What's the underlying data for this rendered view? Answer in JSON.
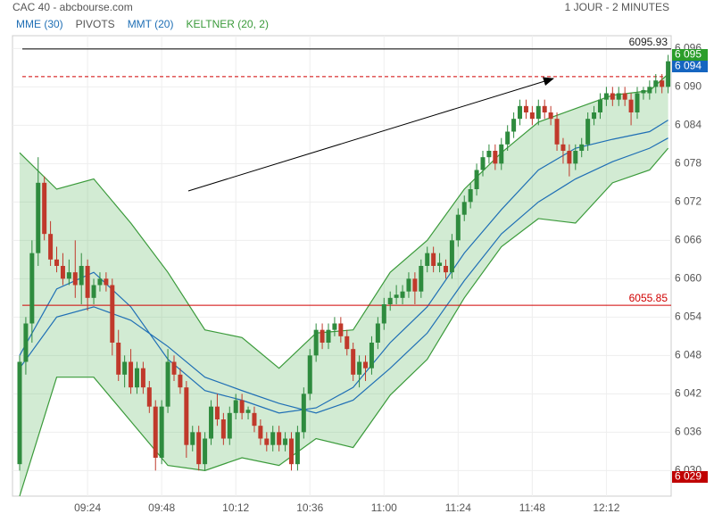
{
  "chart_data": {
    "type": "candlestick",
    "title": "CAC 40 - abcbourse.com",
    "subtitle": "1 JOUR - 2 MINUTES",
    "legend": [
      {
        "name": "MME (30)",
        "color": "#1f6fb5"
      },
      {
        "name": "PIVOTS",
        "color": "#555555"
      },
      {
        "name": "MMT (20)",
        "color": "#1f6fb5"
      },
      {
        "name": "KELTNER (20, 2)",
        "color": "#3a9a3a"
      }
    ],
    "up_color": "#2e8b3e",
    "down_color": "#c0392b",
    "x": [
      "09:02",
      "09:04",
      "09:06",
      "09:08",
      "09:10",
      "09:12",
      "09:14",
      "09:16",
      "09:18",
      "09:20",
      "09:22",
      "09:24",
      "09:26",
      "09:28",
      "09:30",
      "09:32",
      "09:34",
      "09:36",
      "09:38",
      "09:40",
      "09:42",
      "09:44",
      "09:46",
      "09:48",
      "09:50",
      "09:52",
      "09:54",
      "09:56",
      "09:58",
      "10:00",
      "10:02",
      "10:04",
      "10:06",
      "10:08",
      "10:10",
      "10:12",
      "10:14",
      "10:16",
      "10:18",
      "10:20",
      "10:22",
      "10:24",
      "10:26",
      "10:28",
      "10:30",
      "10:32",
      "10:34",
      "10:36",
      "10:38",
      "10:40",
      "10:42",
      "10:44",
      "10:46",
      "10:48",
      "10:50",
      "10:52",
      "10:54",
      "10:56",
      "10:58",
      "11:00",
      "11:02",
      "11:04",
      "11:06",
      "11:08",
      "11:10",
      "11:12",
      "11:14",
      "11:16",
      "11:18",
      "11:20",
      "11:22",
      "11:24",
      "11:26",
      "11:28",
      "11:30",
      "11:32",
      "11:34",
      "11:36",
      "11:38",
      "11:40",
      "11:42",
      "11:44",
      "11:46",
      "11:48",
      "11:50",
      "11:52",
      "11:54",
      "11:56",
      "11:58",
      "12:00",
      "12:02",
      "12:04",
      "12:06",
      "12:08",
      "12:10",
      "12:12",
      "12:14",
      "12:16",
      "12:18",
      "12:20",
      "12:22",
      "12:24",
      "12:26",
      "12:28",
      "12:30",
      "12:32"
    ],
    "candles": [
      [
        6031,
        6048,
        6030,
        6047
      ],
      [
        6047,
        6054,
        6045,
        6053
      ],
      [
        6053,
        6066,
        6050,
        6064
      ],
      [
        6064,
        6079,
        6062,
        6075
      ],
      [
        6075,
        6076,
        6066,
        6067
      ],
      [
        6067,
        6069,
        6062,
        6063
      ],
      [
        6063,
        6065,
        6061,
        6062
      ],
      [
        6062,
        6064,
        6059,
        6060
      ],
      [
        6060,
        6063,
        6059,
        6061
      ],
      [
        6061,
        6066,
        6057,
        6059
      ],
      [
        6059,
        6064,
        6056,
        6062
      ],
      [
        6062,
        6063,
        6055,
        6057
      ],
      [
        6057,
        6060,
        6056,
        6059
      ],
      [
        6059,
        6061,
        6058,
        6060
      ],
      [
        6060,
        6061,
        6058,
        6059
      ],
      [
        6059,
        6060,
        6048,
        6050
      ],
      [
        6050,
        6052,
        6044,
        6045
      ],
      [
        6045,
        6048,
        6043,
        6047
      ],
      [
        6047,
        6049,
        6042,
        6043
      ],
      [
        6043,
        6047,
        6042,
        6046
      ],
      [
        6046,
        6047,
        6042,
        6043
      ],
      [
        6043,
        6044,
        6039,
        6040
      ],
      [
        6040,
        6041,
        6030,
        6032
      ],
      [
        6032,
        6041,
        6031,
        6040
      ],
      [
        6040,
        6049,
        6039,
        6047
      ],
      [
        6047,
        6048,
        6044,
        6045
      ],
      [
        6045,
        6046,
        6042,
        6043
      ],
      [
        6043,
        6044,
        6032,
        6034
      ],
      [
        6034,
        6037,
        6033,
        6036
      ],
      [
        6036,
        6037,
        6030,
        6031
      ],
      [
        6031,
        6036,
        6030,
        6035
      ],
      [
        6035,
        6041,
        6034,
        6040
      ],
      [
        6040,
        6042,
        6037,
        6038
      ],
      [
        6038,
        6039,
        6034,
        6035
      ],
      [
        6035,
        6040,
        6034,
        6039
      ],
      [
        6039,
        6042,
        6038,
        6041
      ],
      [
        6041,
        6042,
        6038,
        6039
      ],
      [
        6039,
        6040,
        6038,
        6039.5
      ],
      [
        6039,
        6040,
        6036,
        6037
      ],
      [
        6037,
        6038,
        6034,
        6035
      ],
      [
        6035,
        6036,
        6033,
        6034
      ],
      [
        6034,
        6037,
        6033,
        6036
      ],
      [
        6036,
        6037,
        6033,
        6034
      ],
      [
        6034,
        6036,
        6033,
        6035
      ],
      [
        6035,
        6036,
        6030,
        6031
      ],
      [
        6031,
        6037,
        6030,
        6036
      ],
      [
        6036,
        6043,
        6035,
        6042
      ],
      [
        6042,
        6049,
        6041,
        6048
      ],
      [
        6048,
        6053,
        6047,
        6052
      ],
      [
        6052,
        6053,
        6049,
        6050
      ],
      [
        6050,
        6053,
        6049,
        6052
      ],
      [
        6052,
        6054,
        6051,
        6053
      ],
      [
        6053,
        6054,
        6050,
        6051
      ],
      [
        6051,
        6052,
        6048,
        6049
      ],
      [
        6049,
        6050,
        6044,
        6045
      ],
      [
        6045,
        6048,
        6043,
        6047
      ],
      [
        6047,
        6048,
        6044,
        6046
      ],
      [
        6046,
        6051,
        6045,
        6050
      ],
      [
        6050,
        6054,
        6049,
        6053
      ],
      [
        6053,
        6057,
        6052,
        6056
      ],
      [
        6056,
        6058,
        6055,
        6057
      ],
      [
        6057,
        6059,
        6056,
        6057.5
      ],
      [
        6057,
        6059,
        6056,
        6058
      ],
      [
        6058,
        6061,
        6057,
        6060
      ],
      [
        6060,
        6061,
        6056,
        6058
      ],
      [
        6058,
        6063,
        6057,
        6062
      ],
      [
        6062,
        6065,
        6061,
        6064
      ],
      [
        6064,
        6065,
        6061,
        6062
      ],
      [
        6062,
        6064,
        6061,
        6062.5
      ],
      [
        6062,
        6063,
        6060,
        6061
      ],
      [
        6061,
        6067,
        6060,
        6066
      ],
      [
        6066,
        6071,
        6065,
        6070
      ],
      [
        6070,
        6073,
        6069,
        6072
      ],
      [
        6072,
        6075,
        6071,
        6074
      ],
      [
        6074,
        6078,
        6073,
        6077
      ],
      [
        6077,
        6080,
        6076,
        6079
      ],
      [
        6079,
        6081,
        6078,
        6080
      ],
      [
        6080,
        6081,
        6077,
        6078
      ],
      [
        6078,
        6082,
        6077,
        6081
      ],
      [
        6081,
        6084,
        6080,
        6083
      ],
      [
        6083,
        6086,
        6082,
        6085
      ],
      [
        6085,
        6088,
        6084,
        6087
      ],
      [
        6087,
        6088,
        6085,
        6086
      ],
      [
        6086,
        6087,
        6084,
        6085
      ],
      [
        6085,
        6088,
        6084,
        6087
      ],
      [
        6087,
        6088,
        6085,
        6086
      ],
      [
        6086,
        6087,
        6084,
        6085
      ],
      [
        6085,
        6086,
        6080,
        6081
      ],
      [
        6081,
        6082,
        6078,
        6080
      ],
      [
        6080,
        6081,
        6076,
        6078
      ],
      [
        6078,
        6081,
        6077,
        6080
      ],
      [
        6080,
        6082,
        6079,
        6081
      ],
      [
        6081,
        6086,
        6080,
        6085
      ],
      [
        6085,
        6087,
        6084,
        6086
      ],
      [
        6086,
        6089,
        6085,
        6088
      ],
      [
        6088,
        6090,
        6087,
        6089
      ],
      [
        6089,
        6090,
        6087,
        6088
      ],
      [
        6088,
        6090,
        6087,
        6089
      ],
      [
        6089,
        6090,
        6087,
        6088
      ],
      [
        6088,
        6089,
        6084,
        6086
      ],
      [
        6086,
        6090,
        6085,
        6089
      ],
      [
        6089,
        6090,
        6088,
        6089.5
      ],
      [
        6089,
        6091,
        6088,
        6090
      ],
      [
        6090,
        6092,
        6089,
        6091
      ],
      [
        6091,
        6092,
        6089,
        6090
      ],
      [
        6090,
        6095,
        6089,
        6094
      ]
    ],
    "overlay_x": [
      "09:02",
      "09:14",
      "09:26",
      "09:38",
      "09:50",
      "10:02",
      "10:14",
      "10:26",
      "10:38",
      "10:50",
      "11:02",
      "11:14",
      "11:26",
      "11:38",
      "11:50",
      "12:02",
      "12:14",
      "12:26",
      "12:32"
    ],
    "keltner_upper": [
      6079.7,
      6074,
      6075.6,
      6068.7,
      6061,
      6052,
      6050.8,
      6046,
      6051.5,
      6052,
      6061,
      6066,
      6074,
      6079.7,
      6084.5,
      6086.6,
      6088.7,
      6089.4,
      6092
    ],
    "keltner_lower": [
      6026,
      6044.6,
      6044.6,
      6037.7,
      6030.8,
      6030,
      6032,
      6030.8,
      6035,
      6033.6,
      6041.8,
      6047.4,
      6057,
      6065,
      6069.4,
      6068.7,
      6075,
      6077,
      6080.4
    ],
    "mmt": [
      6048,
      6058.4,
      6061,
      6055.6,
      6047.4,
      6042.5,
      6041,
      6039,
      6039.8,
      6043,
      6050,
      6055.6,
      6064,
      6070.8,
      6077,
      6080.4,
      6081.8,
      6083,
      6084.8
    ],
    "mme": [
      6046,
      6054,
      6055.6,
      6053.5,
      6049.4,
      6044.6,
      6042.5,
      6040.5,
      6039,
      6041,
      6046,
      6051.5,
      6059.7,
      6067,
      6072,
      6075.6,
      6078.3,
      6080.4,
      6082
    ],
    "levels": [
      {
        "value": 6095.93,
        "label": "6095.93",
        "color": "#000000",
        "dashed": false
      },
      {
        "value": 6091.6,
        "color": "#d00000",
        "dashed": true
      },
      {
        "value": 6055.85,
        "label": "6055.85",
        "color": "#d00000",
        "dashed": false
      }
    ],
    "price_tags": [
      {
        "value": 6095,
        "label": "6 095",
        "color": "#2a9d2a"
      },
      {
        "value": 6094,
        "label": "6 094",
        "color": "#1565c0"
      },
      {
        "value": 6029,
        "label": "6 029",
        "color": "#c00000"
      }
    ],
    "ylim": [
      6026,
      6098
    ],
    "yticks": [
      {
        "value": 6030,
        "label": "6 030"
      },
      {
        "value": 6036,
        "label": "6 036"
      },
      {
        "value": 6042,
        "label": "6 042"
      },
      {
        "value": 6048,
        "label": "6 048"
      },
      {
        "value": 6054,
        "label": "6 054"
      },
      {
        "value": 6060,
        "label": "6 060"
      },
      {
        "value": 6066,
        "label": "6 066"
      },
      {
        "value": 6072,
        "label": "6 072"
      },
      {
        "value": 6078,
        "label": "6 078"
      },
      {
        "value": 6084,
        "label": "6 084"
      },
      {
        "value": 6090,
        "label": "6 090"
      },
      {
        "value": 6096,
        "label": "6 096"
      }
    ],
    "xticks": [
      "09:24",
      "09:48",
      "10:12",
      "10:36",
      "11:00",
      "11:24",
      "11:48",
      "12:12"
    ],
    "grid": true
  }
}
